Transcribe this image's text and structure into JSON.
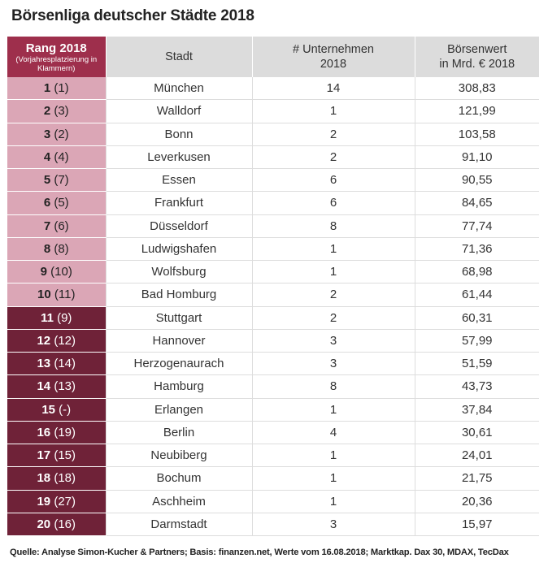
{
  "title": "Börsenliga deutscher Städte 2018",
  "headers": {
    "rank": "Rang 2018",
    "rank_note": "(Vorjahresplatzierung in Klammern)",
    "city": "Stadt",
    "companies_line1": "# Unternehmen",
    "companies_line2": "2018",
    "value_line1": "Börsenwert",
    "value_line2": "in Mrd. € 2018"
  },
  "rows": [
    {
      "rank": "1",
      "prev": "(1)",
      "city": "München",
      "companies": "14",
      "value": "308,83"
    },
    {
      "rank": "2",
      "prev": "(3)",
      "city": "Walldorf",
      "companies": "1",
      "value": "121,99"
    },
    {
      "rank": "3",
      "prev": "(2)",
      "city": "Bonn",
      "companies": "2",
      "value": "103,58"
    },
    {
      "rank": "4",
      "prev": "(4)",
      "city": "Leverkusen",
      "companies": "2",
      "value": "91,10"
    },
    {
      "rank": "5",
      "prev": "(7)",
      "city": "Essen",
      "companies": "6",
      "value": "90,55"
    },
    {
      "rank": "6",
      "prev": "(5)",
      "city": "Frankfurt",
      "companies": "6",
      "value": "84,65"
    },
    {
      "rank": "7",
      "prev": "(6)",
      "city": "Düsseldorf",
      "companies": "8",
      "value": "77,74"
    },
    {
      "rank": "8",
      "prev": "(8)",
      "city": "Ludwigshafen",
      "companies": "1",
      "value": "71,36"
    },
    {
      "rank": "9",
      "prev": "(10)",
      "city": "Wolfsburg",
      "companies": "1",
      "value": "68,98"
    },
    {
      "rank": "10",
      "prev": "(11)",
      "city": "Bad Homburg",
      "companies": "2",
      "value": "61,44"
    },
    {
      "rank": "11",
      "prev": "(9)",
      "city": "Stuttgart",
      "companies": "2",
      "value": "60,31"
    },
    {
      "rank": "12",
      "prev": "(12)",
      "city": "Hannover",
      "companies": "3",
      "value": "57,99"
    },
    {
      "rank": "13",
      "prev": "(14)",
      "city": "Herzogenaurach",
      "companies": "3",
      "value": "51,59"
    },
    {
      "rank": "14",
      "prev": "(13)",
      "city": "Hamburg",
      "companies": "8",
      "value": "43,73"
    },
    {
      "rank": "15",
      "prev": "(-)",
      "city": "Erlangen",
      "companies": "1",
      "value": "37,84"
    },
    {
      "rank": "16",
      "prev": "(19)",
      "city": "Berlin",
      "companies": "4",
      "value": "30,61"
    },
    {
      "rank": "17",
      "prev": "(15)",
      "city": "Neubiberg",
      "companies": "1",
      "value": "24,01"
    },
    {
      "rank": "18",
      "prev": "(18)",
      "city": "Bochum",
      "companies": "1",
      "value": "21,75"
    },
    {
      "rank": "19",
      "prev": "(27)",
      "city": "Aschheim",
      "companies": "1",
      "value": "20,36"
    },
    {
      "rank": "20",
      "prev": "(16)",
      "city": "Darmstadt",
      "companies": "3",
      "value": "15,97"
    }
  ],
  "source": "Quelle: Analyse Simon-Kucher & Partners; Basis: finanzen.net, Werte vom 16.08.2018; Marktkap. Dax 30, MDAX, TecDax",
  "colors": {
    "header_rank_bg": "#9e2f4c",
    "top10_rank_bg": "#dba6b6",
    "rest_rank_bg": "#6f2238",
    "header_bg": "#dcdcdc"
  }
}
